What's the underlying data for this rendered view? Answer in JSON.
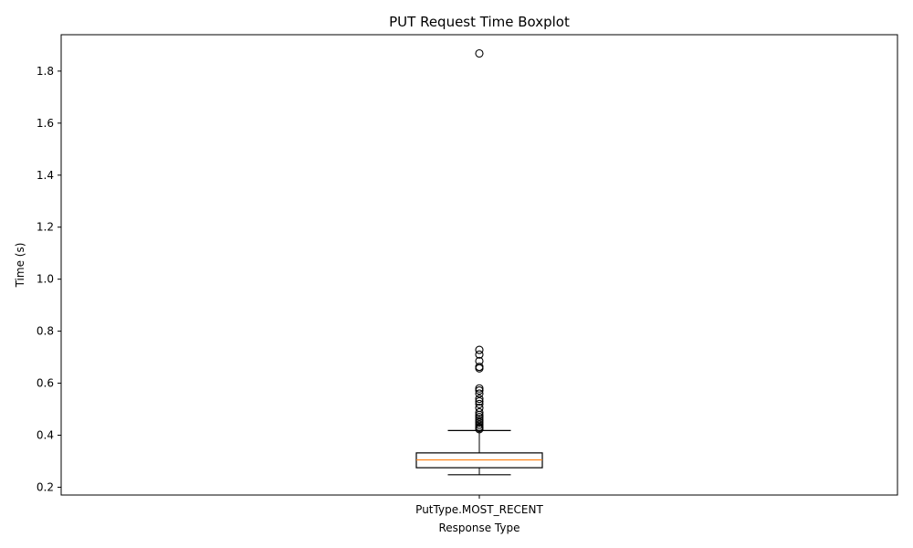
{
  "chart_data": {
    "type": "boxplot",
    "title": "PUT Request Time Boxplot",
    "xlabel": "Response Type",
    "ylabel": "Time (s)",
    "categories": [
      "PutType.MOST_RECENT"
    ],
    "ylim": [
      0.17,
      1.94
    ],
    "yticks": [
      0.2,
      0.4,
      0.6,
      0.8,
      1.0,
      1.2,
      1.4,
      1.6,
      1.8
    ],
    "ytick_labels": [
      "0.2",
      "0.4",
      "0.6",
      "0.8",
      "1.0",
      "1.2",
      "1.4",
      "1.6",
      "1.8"
    ],
    "boxes": [
      {
        "category": "PutType.MOST_RECENT",
        "whisker_low": 0.248,
        "q1": 0.275,
        "median": 0.305,
        "q3": 0.332,
        "whisker_high": 0.418,
        "outliers": [
          0.423,
          0.428,
          0.432,
          0.44,
          0.448,
          0.455,
          0.462,
          0.47,
          0.478,
          0.488,
          0.505,
          0.52,
          0.53,
          0.54,
          0.56,
          0.572,
          0.58,
          0.657,
          0.663,
          0.685,
          0.71,
          0.728,
          1.868
        ]
      }
    ],
    "grid": false,
    "colors": {
      "box": "#000000",
      "median": "#ff7f0e",
      "outlier": "#000000"
    }
  }
}
